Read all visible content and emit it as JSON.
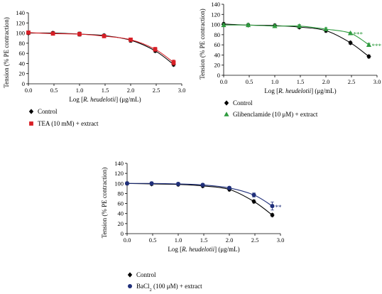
{
  "colors": {
    "control": "#000000",
    "tea": "#d81f26",
    "glibenclamide": "#2e9b3e",
    "bacl2": "#1f2f7a"
  },
  "chart_data": [
    {
      "type": "line",
      "panel": "TEA",
      "xlabel_prefix": "Log [",
      "xlabel_italic": "R. heudelotii",
      "xlabel_suffix": "] (μg/mL)",
      "ylabel": "Tension (% PE contraction)",
      "xlim": [
        0,
        3
      ],
      "ylim": [
        0,
        140
      ],
      "xticks": [
        "0.0",
        "0.5",
        "1.0",
        "1.5",
        "2.0",
        "2.5",
        "3.0"
      ],
      "yticks": [
        "0",
        "20",
        "40",
        "60",
        "80",
        "100",
        "120",
        "140"
      ],
      "series": [
        {
          "name": "Control",
          "marker": "diamond",
          "color": "#000000",
          "x": [
            0,
            0.48,
            1.0,
            1.48,
            2.0,
            2.48,
            2.84
          ],
          "y": [
            100,
            100,
            98,
            95,
            86,
            65,
            38
          ],
          "err": [
            3,
            3,
            4,
            3,
            4,
            3,
            3
          ],
          "annotation": ""
        },
        {
          "name": "TEA (10 mM) + extract",
          "marker": "square",
          "color": "#d81f26",
          "x": [
            0,
            0.48,
            1.0,
            1.48,
            2.0,
            2.48,
            2.84
          ],
          "y": [
            101,
            99,
            98,
            94,
            87,
            68,
            42
          ],
          "err": [
            3,
            3,
            3,
            3,
            3,
            4,
            5
          ],
          "annotation": ""
        }
      ]
    },
    {
      "type": "line",
      "panel": "Glibenclamide",
      "xlabel_prefix": "Log [",
      "xlabel_italic": "R. heudelotii",
      "xlabel_suffix": "] (μg/mL)",
      "ylabel": "Tension (% PE contraction)",
      "xlim": [
        0,
        3
      ],
      "ylim": [
        0,
        140
      ],
      "xticks": [
        "0.0",
        "0.5",
        "1.0",
        "1.5",
        "2.0",
        "2.5",
        "3.0"
      ],
      "yticks": [
        "0",
        "20",
        "40",
        "60",
        "80",
        "100",
        "120",
        "140"
      ],
      "series": [
        {
          "name": "Control",
          "marker": "diamond",
          "color": "#000000",
          "x": [
            0,
            0.48,
            1.0,
            1.48,
            2.0,
            2.48,
            2.84
          ],
          "y": [
            101,
            99,
            98,
            95,
            88,
            64,
            37
          ],
          "err": [
            3,
            3,
            3,
            3,
            3,
            3,
            3
          ],
          "annotation": ""
        },
        {
          "name": "Glibenclamide (10 μM) + extract",
          "marker": "triangle",
          "color": "#2e9b3e",
          "x": [
            0,
            0.48,
            1.0,
            1.48,
            2.0,
            2.48,
            2.84
          ],
          "y": [
            99,
            99,
            97,
            97,
            91,
            83,
            60
          ],
          "err": [
            3,
            3,
            3,
            3,
            3,
            2,
            3
          ],
          "annotation": "***"
        }
      ]
    },
    {
      "type": "line",
      "panel": "BaCl2",
      "xlabel_prefix": "Log [",
      "xlabel_italic": "R. heudelotii",
      "xlabel_suffix": "] (μg/mL)",
      "ylabel": "Tension (% PE contraction)",
      "xlim": [
        0,
        3
      ],
      "ylim": [
        0,
        140
      ],
      "xticks": [
        "0.0",
        "0.5",
        "1.0",
        "1.5",
        "2.0",
        "2.5",
        "3.0"
      ],
      "yticks": [
        "0",
        "20",
        "40",
        "60",
        "80",
        "100",
        "120",
        "140"
      ],
      "series": [
        {
          "name": "Control",
          "marker": "diamond",
          "color": "#000000",
          "x": [
            0,
            0.48,
            1.0,
            1.48,
            2.0,
            2.48,
            2.84
          ],
          "y": [
            100,
            99,
            98,
            95,
            88,
            64,
            37
          ],
          "err": [
            3,
            3,
            3,
            3,
            3,
            3,
            3
          ],
          "annotation": ""
        },
        {
          "name": "BaCl2 (100 μM) + extract",
          "name_prefix": "BaCl",
          "name_sub": "2",
          "name_suffix": " (100 μM) + extract",
          "marker": "circle",
          "color": "#1f2f7a",
          "x": [
            0,
            0.48,
            1.0,
            1.48,
            2.0,
            2.48,
            2.84
          ],
          "y": [
            100,
            100,
            99,
            97,
            91,
            77,
            55
          ],
          "err": [
            3,
            3,
            3,
            3,
            3,
            4,
            8
          ],
          "annotation": "**"
        }
      ]
    }
  ]
}
